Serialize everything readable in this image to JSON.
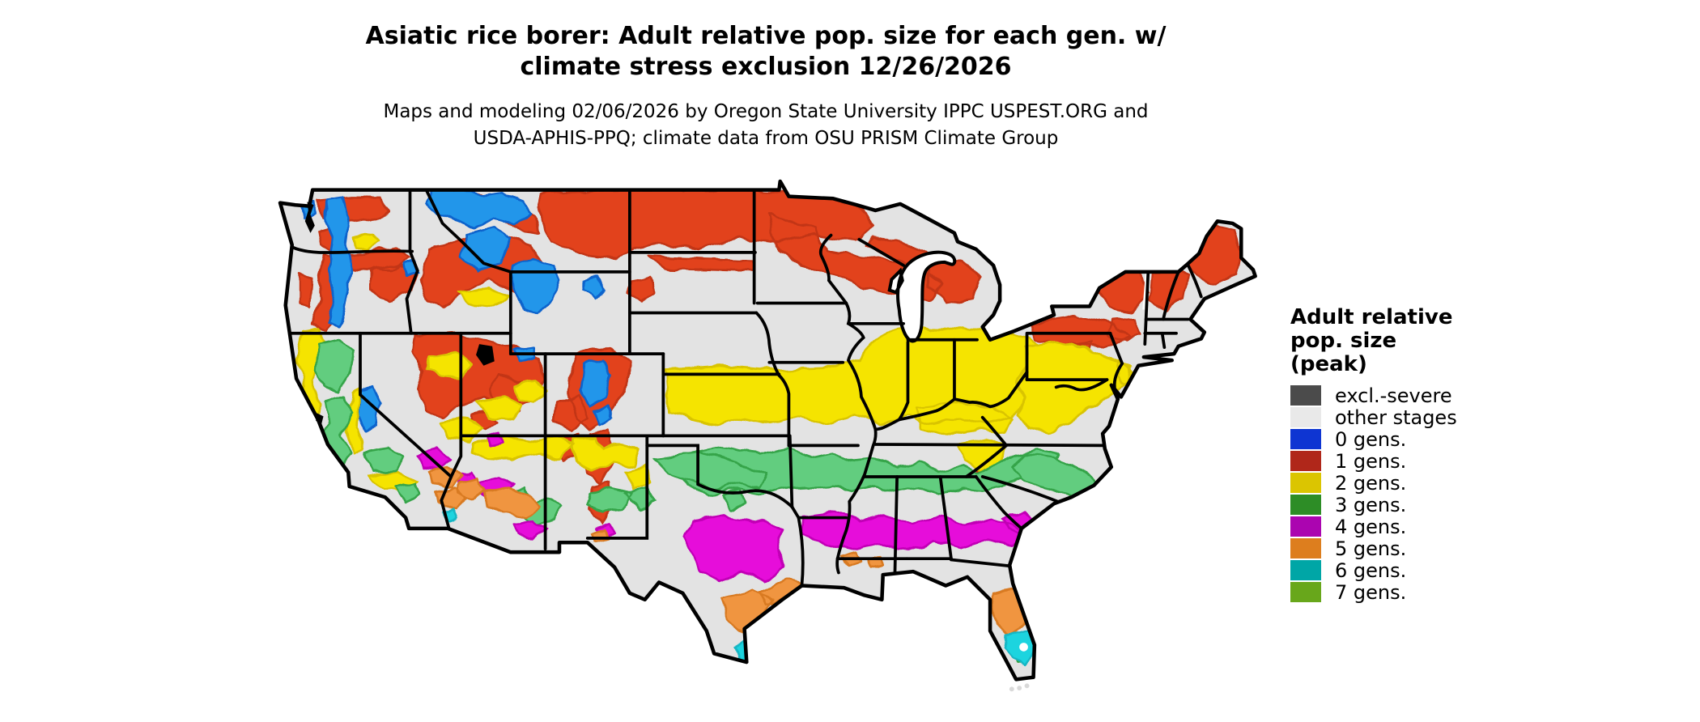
{
  "title": {
    "line1": "Asiatic rice borer: Adult relative pop. size for each gen. w/",
    "line2": "climate stress exclusion 12/26/2026"
  },
  "subtitle": {
    "line1": "Maps and modeling 02/06/2026 by Oregon State University IPPC USPEST.ORG and",
    "line2": "USDA-APHIS-PPQ; climate data from OSU PRISM Climate Group"
  },
  "legend": {
    "title_lines": [
      "Adult relative",
      "pop. size",
      "(peak)"
    ],
    "items": [
      {
        "label": "excl.-severe",
        "color": "#4b4b4b"
      },
      {
        "label": "other stages",
        "color": "#e9e9e9"
      },
      {
        "label": "0 gens.",
        "color": "#0e35d2"
      },
      {
        "label": "1 gens.",
        "color": "#b0271a"
      },
      {
        "label": "2 gens.",
        "color": "#dbc501"
      },
      {
        "label": "3 gens.",
        "color": "#2d8d26"
      },
      {
        "label": "4 gens.",
        "color": "#ab05b0"
      },
      {
        "label": "5 gens.",
        "color": "#dd7e1e"
      },
      {
        "label": "6 gens.",
        "color": "#00a6a6"
      },
      {
        "label": "7 gens.",
        "color": "#68a71b"
      }
    ]
  },
  "map": {
    "palette": {
      "base": {
        "fill": "#e3e3e3"
      },
      "red": {
        "fill": "#e2421b",
        "stroke": "#c23514"
      },
      "blue": {
        "fill": "#2196ea",
        "stroke": "#0b63cc"
      },
      "yellow": {
        "fill": "#f5e400",
        "stroke": "#d9c400"
      },
      "green": {
        "fill": "#62cd7f",
        "stroke": "#35a448"
      },
      "magenta": {
        "fill": "#e607da",
        "stroke": "#c102b5"
      },
      "orange": {
        "fill": "#f0953f",
        "stroke": "#d87a22"
      },
      "cyan": {
        "fill": "#1ed4df",
        "stroke": "#12b6c4"
      }
    }
  }
}
